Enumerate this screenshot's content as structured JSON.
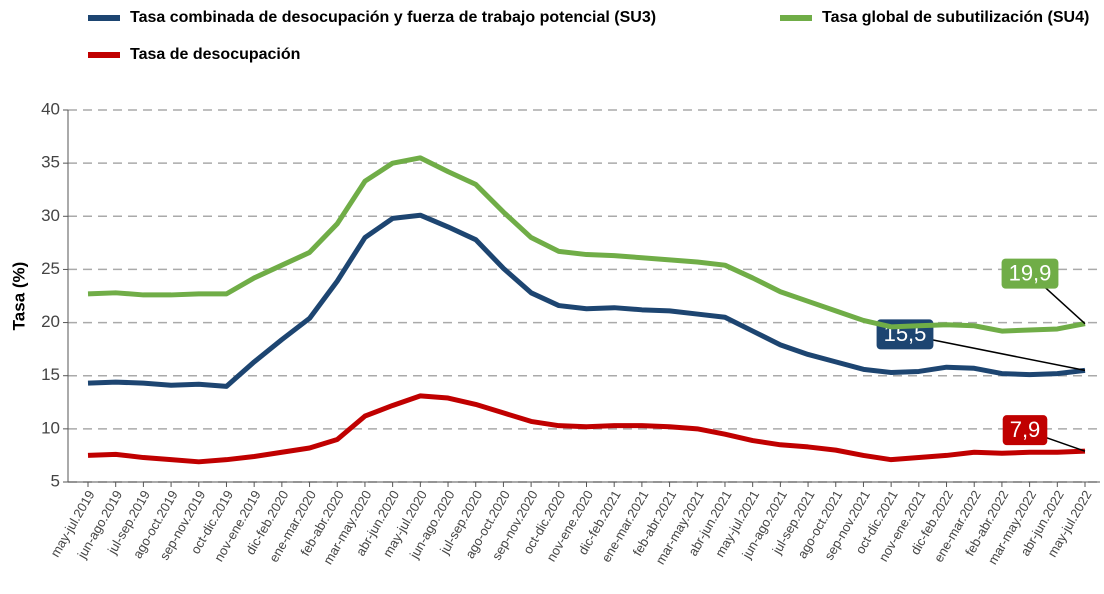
{
  "chart_data": {
    "type": "line",
    "y_label": "Tasa (%)",
    "categories": [
      "may-jul.2019",
      "jun-ago.2019",
      "jul-sep.2019",
      "ago-oct.2019",
      "sep-nov.2019",
      "oct-dic.2019",
      "nov-ene.2019",
      "dic-feb.2020",
      "ene-mar.2020",
      "feb-abr.2020",
      "mar-may.2020",
      "abr-jun.2020",
      "may-jul.2020",
      "jun-ago.2020",
      "jul-sep.2020",
      "ago-oct.2020",
      "sep-nov.2020",
      "oct-dic.2020",
      "nov-ene.2020",
      "dic-feb.2021",
      "ene-mar.2021",
      "feb-abr.2021",
      "mar-may.2021",
      "abr-jun.2021",
      "may-jul.2021",
      "jun-ago.2021",
      "jul-sep.2021",
      "ago-oct.2021",
      "sep-nov.2021",
      "oct-dic.2021",
      "nov-ene.2021",
      "dic-feb.2022",
      "ene-mar.2022",
      "feb-abr.2022",
      "mar-may.2022",
      "abr-jun.2022",
      "may-jul.2022"
    ],
    "series": [
      {
        "name": "Tasa combinada de desocupación y fuerza de trabajo potencial (SU3)",
        "color": "#1d4571",
        "end_label": "15,5",
        "values": [
          14.3,
          14.4,
          14.3,
          14.1,
          14.2,
          14.0,
          16.3,
          18.4,
          20.4,
          23.9,
          28.0,
          29.8,
          30.1,
          29.0,
          27.8,
          25.1,
          22.8,
          21.6,
          21.3,
          21.4,
          21.2,
          21.1,
          20.8,
          20.5,
          19.2,
          17.9,
          17.0,
          16.3,
          15.6,
          15.3,
          15.4,
          15.8,
          15.7,
          15.2,
          15.1,
          15.2,
          15.5
        ]
      },
      {
        "name": "Tasa global de subutilización (SU4)",
        "color": "#70ad47",
        "end_label": "19,9",
        "values": [
          22.7,
          22.8,
          22.6,
          22.6,
          22.7,
          22.7,
          24.2,
          25.4,
          26.6,
          29.3,
          33.3,
          35.0,
          35.5,
          34.2,
          33.0,
          30.4,
          28.0,
          26.7,
          26.4,
          26.3,
          26.1,
          25.9,
          25.7,
          25.4,
          24.2,
          22.9,
          22.0,
          21.1,
          20.2,
          19.6,
          19.7,
          19.8,
          19.7,
          19.2,
          19.3,
          19.4,
          19.9
        ]
      },
      {
        "name": "Tasa de desocupación",
        "color": "#c00000",
        "end_label": "7,9",
        "values": [
          7.5,
          7.6,
          7.3,
          7.1,
          6.9,
          7.1,
          7.4,
          7.8,
          8.2,
          9.0,
          11.2,
          12.2,
          13.1,
          12.9,
          12.3,
          11.5,
          10.7,
          10.3,
          10.2,
          10.3,
          10.3,
          10.2,
          10.0,
          9.5,
          8.9,
          8.5,
          8.3,
          8.0,
          7.5,
          7.1,
          7.3,
          7.5,
          7.8,
          7.7,
          7.8,
          7.8,
          7.9
        ]
      }
    ],
    "ylim": [
      5,
      40
    ],
    "yticks": [
      5,
      10,
      15,
      20,
      25,
      30,
      35,
      40
    ],
    "grid": true,
    "legend": "top"
  }
}
